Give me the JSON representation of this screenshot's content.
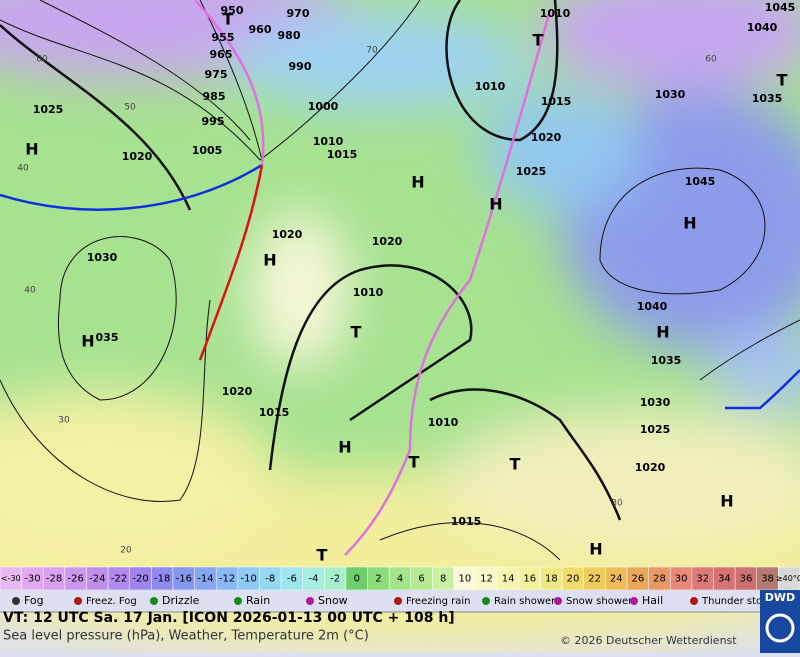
{
  "map": {
    "isobar_labels": [
      "1010",
      "1045",
      "1040",
      "1030",
      "1035",
      "1010",
      "1015",
      "1020",
      "1025",
      "1045",
      "1040",
      "1035",
      "1030",
      "1025",
      "1020",
      "1015",
      "1010",
      "1015",
      "1020",
      "1030",
      "1025",
      "1020",
      "1005",
      "995",
      "985",
      "975",
      "965",
      "955",
      "950",
      "960",
      "970",
      "980",
      "990",
      "1000",
      "1010",
      "1015",
      "1020",
      "1020",
      "1010",
      "035"
    ],
    "pressure_centers": [
      "H",
      "T",
      "H",
      "H",
      "T",
      "H",
      "H",
      "T",
      "H",
      "T",
      "H",
      "H",
      "T",
      "T",
      "H",
      "H",
      "T"
    ],
    "latitude_labels": [
      "60",
      "50",
      "40",
      "40",
      "30",
      "20",
      "70",
      "60",
      "30"
    ]
  },
  "temperature_scale": {
    "low_label": "<-30",
    "values": [
      -30,
      -28,
      -26,
      -24,
      -22,
      -20,
      -18,
      -16,
      -14,
      -12,
      -10,
      -8,
      -6,
      -4,
      -2,
      0,
      2,
      4,
      6,
      8,
      10,
      12,
      14,
      16,
      18,
      20,
      22,
      24,
      26,
      28,
      30,
      32,
      34,
      36,
      38
    ],
    "high_label": "≥40°C",
    "colors": [
      "#e8b8f2",
      "#e2a8f0",
      "#d9a0ee",
      "#cc98ee",
      "#c08fee",
      "#b28aee",
      "#9e85ee",
      "#8e8aee",
      "#8496f0",
      "#86a6f2",
      "#8ab8f4",
      "#8ecaf4",
      "#96d8f2",
      "#9ee6ee",
      "#a8eee0",
      "#a8f0cc",
      "#6ccf6c",
      "#8cdc7c",
      "#a4e48a",
      "#b6ea92",
      "#c8f0a0",
      "#fafad8",
      "#f8f8c8",
      "#f5f5b0",
      "#f2f09a",
      "#f0e882",
      "#f0dc6c",
      "#f0cc5c",
      "#f0bc58",
      "#eca85a",
      "#ea9868",
      "#e88878",
      "#e07a7a",
      "#d87272",
      "#cc7070",
      "#b47a70",
      "#d8d8d8"
    ]
  },
  "weather_legend": [
    "Fog",
    "Freez. Fog",
    "Drizzle",
    "Rain",
    "Snow",
    "Freezing rain",
    "Rain shower",
    "Snow shower",
    "Hail",
    "Thunder storm"
  ],
  "footer": {
    "valid_time": "VT: 12 UTC Sa.  17 Jan. [ICON 2026-01-13  00 UTC + 108 h]",
    "description": "Sea level pressure (hPa), Weather, Temperature 2m (°C)",
    "copyright": "© 2026 Deutscher Wetterdienst",
    "logo": "DWD"
  }
}
